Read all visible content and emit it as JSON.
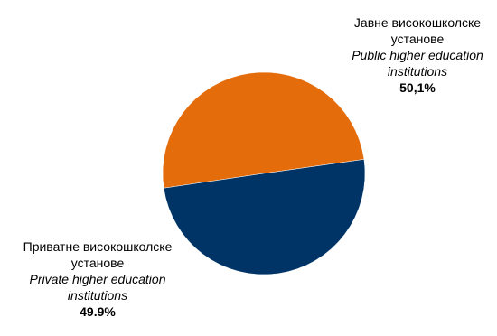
{
  "chart_data": {
    "type": "pie",
    "title": "",
    "slices": [
      {
        "label_sr": "Јавне високошколске\nустанове",
        "label_en": "Public higher education\ninstitutions",
        "value": 50.1,
        "value_label": "50,1%",
        "color": "#E46C0A"
      },
      {
        "label_sr": "Приватне високошколске\nустанове",
        "label_en": "Private higher education\ninstitutions",
        "value": 49.9,
        "value_label": "49.9%",
        "color": "#003366"
      }
    ],
    "legend": "none"
  }
}
